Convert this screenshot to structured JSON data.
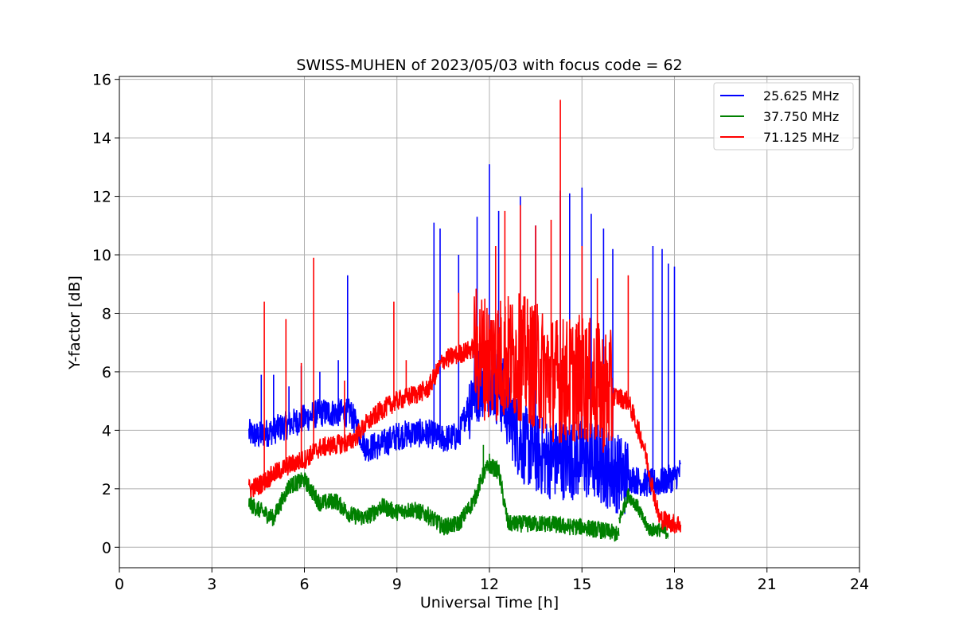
{
  "chart_data": {
    "type": "line",
    "title": "SWISS-MUHEN of 2023/05/03 with focus code = 62",
    "xlabel": "Universal Time [h]",
    "ylabel": "Y-factor [dB]",
    "xlim": [
      0,
      24
    ],
    "ylim": [
      -0.7,
      16.1
    ],
    "xticks": [
      0,
      3,
      6,
      9,
      12,
      15,
      18,
      21,
      24
    ],
    "yticks": [
      0,
      2,
      4,
      6,
      8,
      10,
      12,
      14,
      16
    ],
    "grid": true,
    "legend_position": "top-right",
    "colors": {
      "25.625": "#0000ff",
      "37.750": "#008000",
      "71.125": "#ff0000"
    },
    "series": [
      {
        "name": "25.625 MHz",
        "color": "#0000ff",
        "x": [
          4.2,
          4.5,
          5.0,
          5.5,
          6.0,
          6.5,
          7.0,
          7.5,
          8.0,
          8.5,
          9.0,
          9.5,
          10.0,
          10.5,
          11.0,
          11.5,
          12.0,
          12.5,
          13.0,
          13.5,
          14.0,
          14.5,
          15.0,
          15.5,
          16.0,
          16.5,
          17.0,
          17.5,
          18.0,
          18.2
        ],
        "y": [
          3.9,
          3.8,
          4.0,
          4.2,
          4.4,
          4.6,
          4.6,
          4.6,
          3.4,
          3.5,
          3.8,
          3.9,
          3.9,
          3.7,
          3.8,
          5.5,
          6.0,
          5.0,
          3.6,
          3.2,
          3.0,
          3.0,
          3.0,
          2.9,
          2.6,
          2.4,
          2.2,
          2.2,
          2.4,
          2.6
        ],
        "spikes": [
          [
            4.6,
            5.9
          ],
          [
            5.0,
            5.9
          ],
          [
            5.5,
            5.5
          ],
          [
            5.9,
            6.2
          ],
          [
            6.5,
            6.0
          ],
          [
            7.1,
            6.4
          ],
          [
            7.4,
            9.3
          ],
          [
            10.2,
            11.1
          ],
          [
            10.4,
            10.9
          ],
          [
            11.0,
            10.0
          ],
          [
            11.6,
            11.3
          ],
          [
            12.0,
            13.1
          ],
          [
            12.3,
            11.5
          ],
          [
            13.0,
            12.0
          ],
          [
            13.5,
            11.0
          ],
          [
            14.3,
            12.2
          ],
          [
            14.6,
            12.1
          ],
          [
            15.0,
            12.3
          ],
          [
            15.3,
            11.4
          ],
          [
            15.7,
            10.9
          ],
          [
            16.0,
            10.2
          ],
          [
            17.3,
            10.3
          ],
          [
            17.6,
            10.2
          ],
          [
            17.8,
            9.7
          ],
          [
            18.0,
            9.6
          ]
        ],
        "noise": 0.5
      },
      {
        "name": "37.750 MHz",
        "color": "#008000",
        "x": [
          4.2,
          4.5,
          5.0,
          5.5,
          6.0,
          6.5,
          7.0,
          7.5,
          8.0,
          8.5,
          9.0,
          9.5,
          10.0,
          10.5,
          11.0,
          11.5,
          11.8,
          12.0,
          12.3,
          12.6,
          13.0,
          13.5,
          14.0,
          14.5,
          15.0,
          15.5,
          16.0,
          16.2
        ],
        "y": [
          1.5,
          1.3,
          1.0,
          2.1,
          2.3,
          1.5,
          1.6,
          1.1,
          1.0,
          1.4,
          1.2,
          1.3,
          1.1,
          0.7,
          0.8,
          1.6,
          2.5,
          2.8,
          2.6,
          0.8,
          0.8,
          0.8,
          0.8,
          0.7,
          0.7,
          0.6,
          0.5,
          0.4
        ],
        "spikes": [
          [
            11.8,
            3.5
          ],
          [
            12.0,
            3.2
          ]
        ],
        "noise": 0.3,
        "extra": [
          [
            16.2,
            0.9
          ],
          [
            16.5,
            1.8
          ],
          [
            16.8,
            1.4
          ],
          [
            17.0,
            0.9
          ],
          [
            17.2,
            0.6
          ],
          [
            17.5,
            0.6
          ],
          [
            17.8,
            0.5
          ]
        ]
      },
      {
        "name": "71.125 MHz",
        "color": "#ff0000",
        "x": [
          4.2,
          4.5,
          5.0,
          5.5,
          6.0,
          6.5,
          7.0,
          7.5,
          8.0,
          8.5,
          9.0,
          9.5,
          10.0,
          10.5,
          11.0,
          11.5,
          12.0,
          12.5,
          13.0,
          13.5,
          14.0,
          14.5,
          15.0,
          15.5,
          16.0,
          16.5,
          17.0,
          17.5,
          18.0,
          18.2
        ],
        "y": [
          2.0,
          2.1,
          2.5,
          2.8,
          3.0,
          3.4,
          3.5,
          3.6,
          4.2,
          4.7,
          5.0,
          5.2,
          5.4,
          6.4,
          6.6,
          6.8,
          6.4,
          6.5,
          6.5,
          6.2,
          5.8,
          5.7,
          5.8,
          5.5,
          5.2,
          5.0,
          3.5,
          1.0,
          0.8,
          0.8
        ],
        "spikes": [
          [
            4.7,
            8.4
          ],
          [
            5.4,
            7.8
          ],
          [
            5.9,
            6.3
          ],
          [
            6.3,
            9.9
          ],
          [
            7.3,
            5.7
          ],
          [
            8.9,
            8.4
          ],
          [
            9.3,
            6.4
          ],
          [
            11.0,
            8.7
          ],
          [
            12.2,
            10.3
          ],
          [
            12.5,
            11.5
          ],
          [
            13.0,
            11.7
          ],
          [
            13.5,
            11.0
          ],
          [
            14.0,
            11.2
          ],
          [
            14.3,
            15.3
          ],
          [
            15.0,
            10.3
          ],
          [
            15.5,
            9.2
          ],
          [
            16.5,
            9.3
          ]
        ],
        "noise": 0.35,
        "heavy_noise_range": [
          11.5,
          16.0
        ]
      }
    ]
  }
}
